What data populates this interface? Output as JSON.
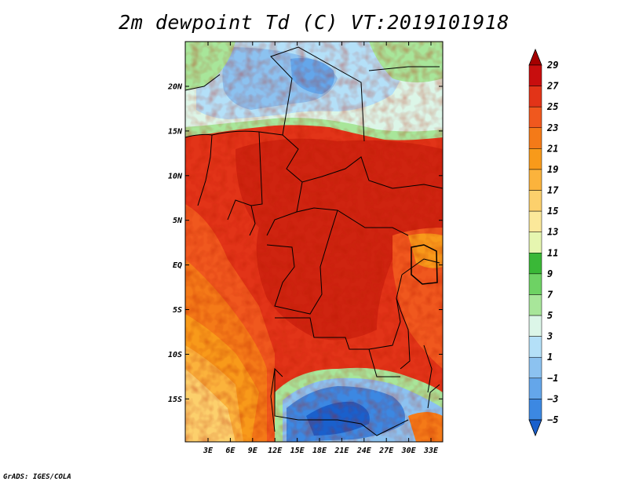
{
  "title": "2m dewpoint Td (C) VT:2019101918",
  "credit": "GrADS: IGES/COLA",
  "map": {
    "lat_labels": [
      "20N",
      "15N",
      "10N",
      "5N",
      "EQ",
      "5S",
      "10S",
      "15S"
    ],
    "lon_labels": [
      "3E",
      "6E",
      "9E",
      "12E",
      "15E",
      "18E",
      "21E",
      "24E",
      "27E",
      "30E",
      "33E"
    ]
  },
  "colorbar": {
    "labels": [
      "29",
      "27",
      "25",
      "23",
      "21",
      "19",
      "17",
      "15",
      "13",
      "11",
      "9",
      "7",
      "5",
      "3",
      "1",
      "−1",
      "−3",
      "−5"
    ],
    "colors": [
      "#a50000",
      "#c80e0e",
      "#e23418",
      "#f0581e",
      "#f47a18",
      "#f89a1a",
      "#fbb33c",
      "#fcd06c",
      "#fbe89a",
      "#e6f6b0",
      "#3ab837",
      "#6ed264",
      "#a8e69a",
      "#dcf6e8",
      "#b4e0f8",
      "#8cc2f0",
      "#64a6ea",
      "#3c88e2",
      "#1a60cc"
    ],
    "range": [
      -5,
      29
    ]
  }
}
